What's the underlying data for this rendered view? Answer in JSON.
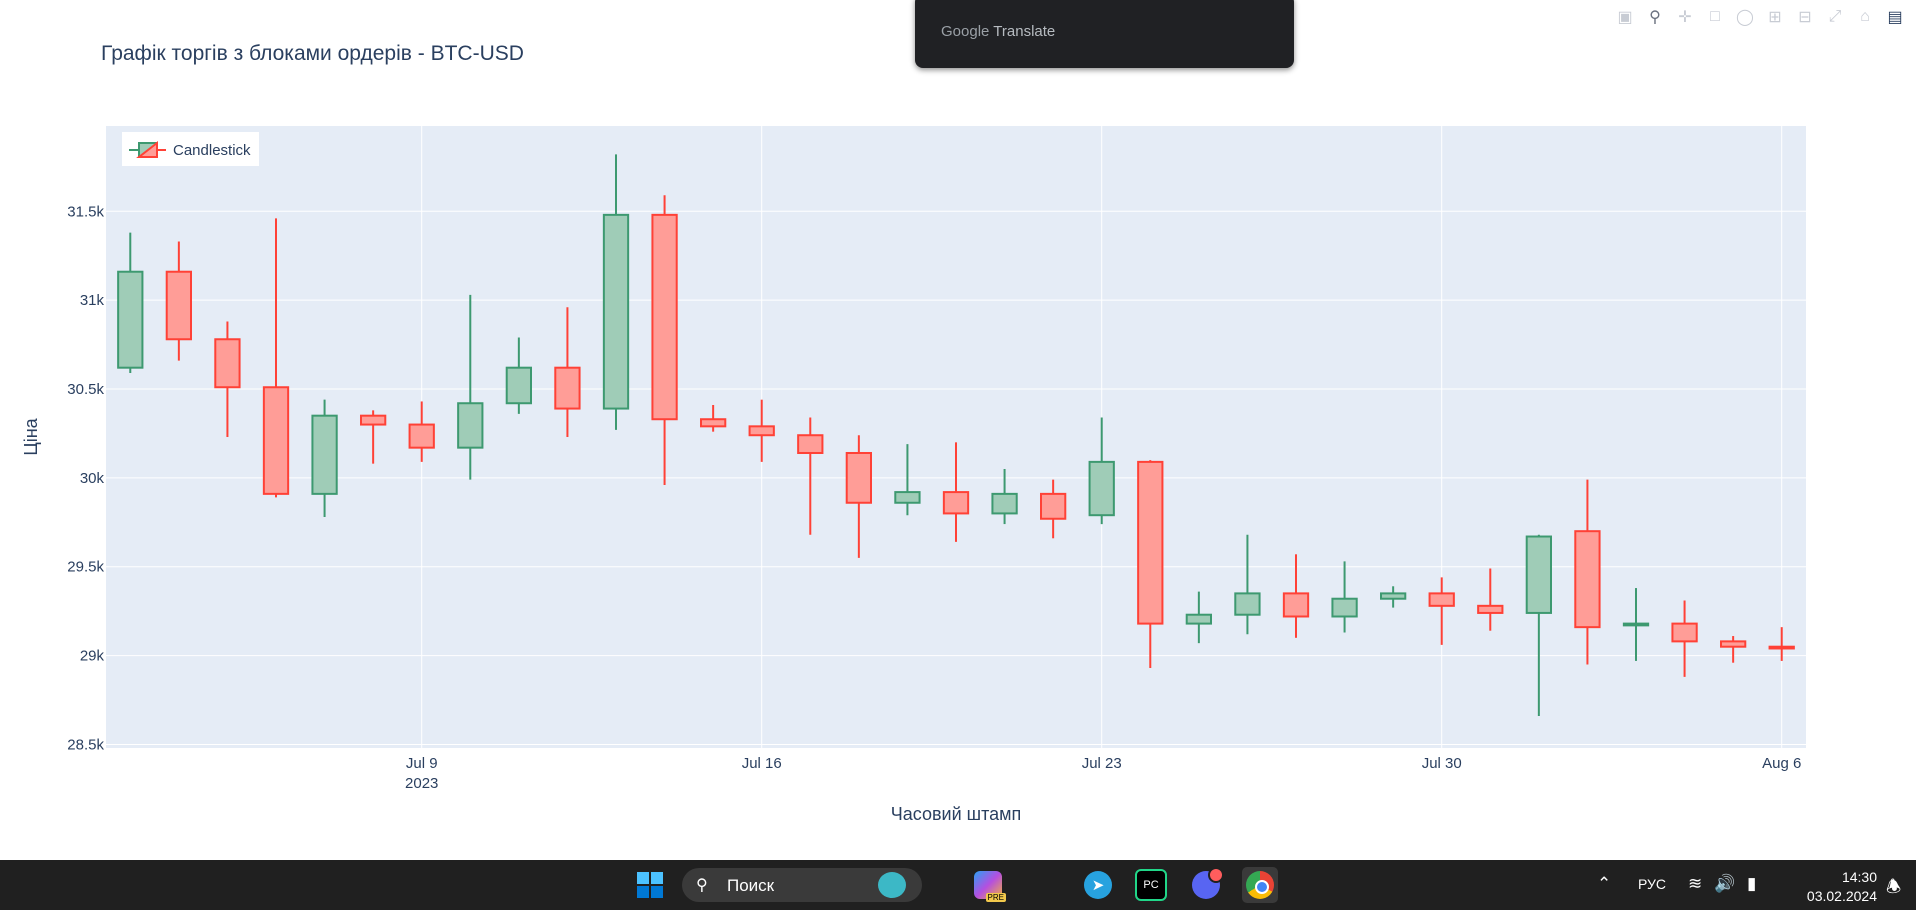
{
  "chart_data": {
    "type": "candlestick",
    "title": "Графік торгів з блоками ордерів - BTC-USD",
    "xlabel": "Часовий штамп",
    "ylabel": "Ціна",
    "x_ticks": [
      {
        "date": "2023-07-09",
        "label": "Jul 9",
        "sublabel": "2023"
      },
      {
        "date": "2023-07-16",
        "label": "Jul 16",
        "sublabel": ""
      },
      {
        "date": "2023-07-23",
        "label": "Jul 23",
        "sublabel": ""
      },
      {
        "date": "2023-07-30",
        "label": "Jul 30",
        "sublabel": ""
      },
      {
        "date": "2023-08-06",
        "label": "Aug 6",
        "sublabel": ""
      }
    ],
    "y_ticks": [
      {
        "value": 28500,
        "label": "28.5k"
      },
      {
        "value": 29000,
        "label": "29k"
      },
      {
        "value": 29500,
        "label": "29.5k"
      },
      {
        "value": 30000,
        "label": "30k"
      },
      {
        "value": 30500,
        "label": "30.5k"
      },
      {
        "value": 31000,
        "label": "31k"
      },
      {
        "value": 31500,
        "label": "31.5k"
      }
    ],
    "ylim": [
      28480,
      31980
    ],
    "xlim": [
      "2023-07-02T12:00",
      "2023-08-06T12:00"
    ],
    "legend": {
      "position": "top-left",
      "entries": [
        "Candlestick"
      ]
    },
    "grid": true,
    "colors": {
      "increasing": "#3d9970",
      "decreasing": "#ff4136",
      "plot_bg": "#e5ecf6"
    },
    "series": [
      {
        "name": "Candlestick",
        "candles": [
          {
            "date": "2023-07-03",
            "open": 30620,
            "high": 31380,
            "low": 30590,
            "close": 31160
          },
          {
            "date": "2023-07-04",
            "open": 31160,
            "high": 31330,
            "low": 30660,
            "close": 30780
          },
          {
            "date": "2023-07-05",
            "open": 30780,
            "high": 30880,
            "low": 30230,
            "close": 30510
          },
          {
            "date": "2023-07-06",
            "open": 30510,
            "high": 31460,
            "low": 29890,
            "close": 29910
          },
          {
            "date": "2023-07-07",
            "open": 29910,
            "high": 30440,
            "low": 29780,
            "close": 30350
          },
          {
            "date": "2023-07-08",
            "open": 30350,
            "high": 30380,
            "low": 30080,
            "close": 30300
          },
          {
            "date": "2023-07-09",
            "open": 30300,
            "high": 30430,
            "low": 30090,
            "close": 30170
          },
          {
            "date": "2023-07-10",
            "open": 30170,
            "high": 31030,
            "low": 29990,
            "close": 30420
          },
          {
            "date": "2023-07-11",
            "open": 30420,
            "high": 30790,
            "low": 30360,
            "close": 30620
          },
          {
            "date": "2023-07-12",
            "open": 30620,
            "high": 30960,
            "low": 30230,
            "close": 30390
          },
          {
            "date": "2023-07-13",
            "open": 30390,
            "high": 31820,
            "low": 30270,
            "close": 31480
          },
          {
            "date": "2023-07-14",
            "open": 31480,
            "high": 31590,
            "low": 29960,
            "close": 30330
          },
          {
            "date": "2023-07-15",
            "open": 30330,
            "high": 30410,
            "low": 30260,
            "close": 30290
          },
          {
            "date": "2023-07-16",
            "open": 30290,
            "high": 30440,
            "low": 30090,
            "close": 30240
          },
          {
            "date": "2023-07-17",
            "open": 30240,
            "high": 30340,
            "low": 29680,
            "close": 30140
          },
          {
            "date": "2023-07-18",
            "open": 30140,
            "high": 30240,
            "low": 29550,
            "close": 29860
          },
          {
            "date": "2023-07-19",
            "open": 29860,
            "high": 30190,
            "low": 29790,
            "close": 29920
          },
          {
            "date": "2023-07-20",
            "open": 29920,
            "high": 30200,
            "low": 29640,
            "close": 29800
          },
          {
            "date": "2023-07-21",
            "open": 29800,
            "high": 30050,
            "low": 29740,
            "close": 29910
          },
          {
            "date": "2023-07-22",
            "open": 29910,
            "high": 29990,
            "low": 29660,
            "close": 29770
          },
          {
            "date": "2023-07-23",
            "open": 29790,
            "high": 30340,
            "low": 29740,
            "close": 30090
          },
          {
            "date": "2023-07-24",
            "open": 30090,
            "high": 30100,
            "low": 28930,
            "close": 29180
          },
          {
            "date": "2023-07-25",
            "open": 29180,
            "high": 29360,
            "low": 29070,
            "close": 29230
          },
          {
            "date": "2023-07-26",
            "open": 29230,
            "high": 29680,
            "low": 29120,
            "close": 29350
          },
          {
            "date": "2023-07-27",
            "open": 29350,
            "high": 29570,
            "low": 29100,
            "close": 29220
          },
          {
            "date": "2023-07-28",
            "open": 29220,
            "high": 29530,
            "low": 29130,
            "close": 29320
          },
          {
            "date": "2023-07-29",
            "open": 29320,
            "high": 29390,
            "low": 29270,
            "close": 29350
          },
          {
            "date": "2023-07-30",
            "open": 29350,
            "high": 29440,
            "low": 29060,
            "close": 29280
          },
          {
            "date": "2023-07-31",
            "open": 29280,
            "high": 29490,
            "low": 29140,
            "close": 29240
          },
          {
            "date": "2023-08-01",
            "open": 29240,
            "high": 29680,
            "low": 28660,
            "close": 29670
          },
          {
            "date": "2023-08-02",
            "open": 29700,
            "high": 29990,
            "low": 28950,
            "close": 29160
          },
          {
            "date": "2023-08-03",
            "open": 29170,
            "high": 29380,
            "low": 28970,
            "close": 29180
          },
          {
            "date": "2023-08-04",
            "open": 29180,
            "high": 29310,
            "low": 28880,
            "close": 29080
          },
          {
            "date": "2023-08-05",
            "open": 29080,
            "high": 29110,
            "low": 28960,
            "close": 29050
          },
          {
            "date": "2023-08-06",
            "open": 29050,
            "high": 29160,
            "low": 28970,
            "close": 29040
          }
        ]
      }
    ]
  },
  "modebar": {
    "icons": [
      "camera-icon",
      "zoom-icon",
      "pan-icon",
      "box-select-icon",
      "lasso-icon",
      "zoom-in-icon",
      "zoom-out-icon",
      "autoscale-icon",
      "home-icon",
      "plotly-logo-icon"
    ]
  },
  "translate_popup": {
    "brand_google": "Google",
    "brand_translate": "Translate"
  },
  "taskbar": {
    "search_label": "Поиск",
    "language": "РУС",
    "time": "14:30",
    "date": "03.02.2024",
    "apps": [
      "copilot-icon",
      "telegram-icon",
      "pycharm-icon",
      "discord-icon",
      "chrome-icon"
    ],
    "app_badge_label": "PRE",
    "pycharm_label": "PC"
  }
}
